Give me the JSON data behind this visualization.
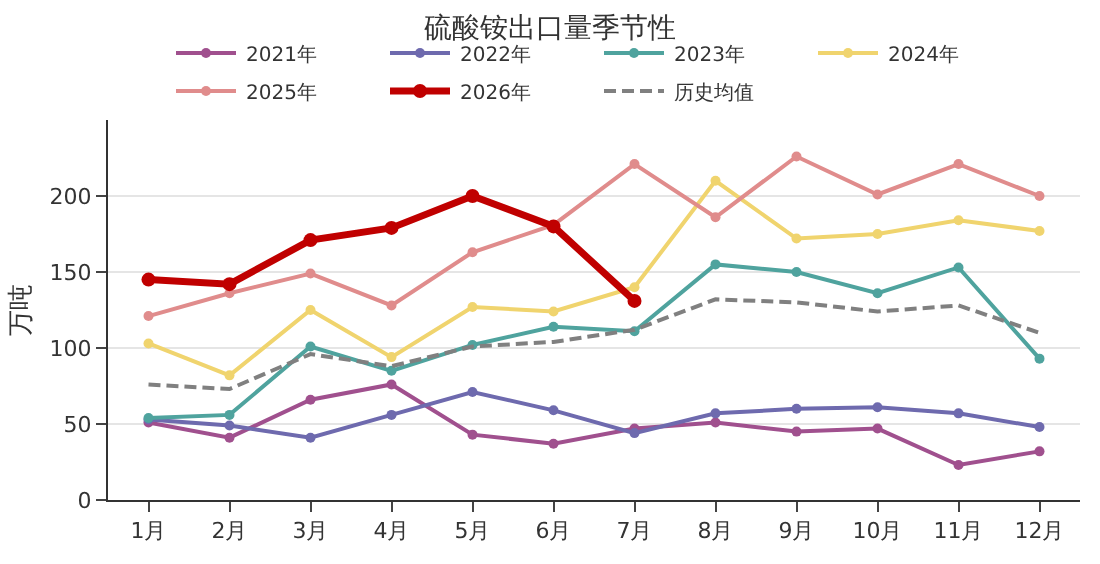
{
  "chart_data": {
    "type": "line",
    "title": "硫酸铵出口量季节性",
    "ylabel": "万吨",
    "categories": [
      "1月",
      "2月",
      "3月",
      "4月",
      "5月",
      "6月",
      "7月",
      "8月",
      "9月",
      "10月",
      "11月",
      "12月"
    ],
    "series": [
      {
        "name": "2021年",
        "color": "#a0508e",
        "values": [
          51,
          41,
          66,
          76,
          43,
          37,
          47,
          51,
          45,
          47,
          23,
          32
        ]
      },
      {
        "name": "2022年",
        "color": "#6e6aae",
        "values": [
          53,
          49,
          41,
          56,
          71,
          59,
          44,
          57,
          60,
          61,
          57,
          48
        ]
      },
      {
        "name": "2023年",
        "color": "#4fa39e",
        "values": [
          54,
          56,
          101,
          85,
          102,
          114,
          111,
          155,
          150,
          136,
          153,
          93
        ]
      },
      {
        "name": "2024年",
        "color": "#f0d46e",
        "values": [
          103,
          82,
          125,
          94,
          127,
          124,
          140,
          210,
          172,
          175,
          184,
          177
        ]
      },
      {
        "name": "2025年",
        "color": "#e08c8c",
        "values": [
          121,
          136,
          149,
          128,
          163,
          181,
          221,
          186,
          226,
          201,
          221,
          200
        ]
      },
      {
        "name": "2026年",
        "color": "#c00000",
        "values": [
          145,
          142,
          171,
          179,
          200,
          180,
          131,
          null,
          null,
          null,
          null,
          null
        ]
      },
      {
        "name": "历史均值",
        "color": "#808080",
        "line_style": "dashed",
        "marker": "none",
        "values": [
          76,
          73,
          96,
          88,
          101,
          104,
          112,
          132,
          130,
          124,
          128,
          110
        ]
      }
    ],
    "ylim": [
      0,
      250
    ],
    "yticks": [
      0,
      50,
      100,
      150,
      200
    ],
    "grid": "y",
    "legend": "top",
    "marker": "circle",
    "line_style": "solid"
  }
}
